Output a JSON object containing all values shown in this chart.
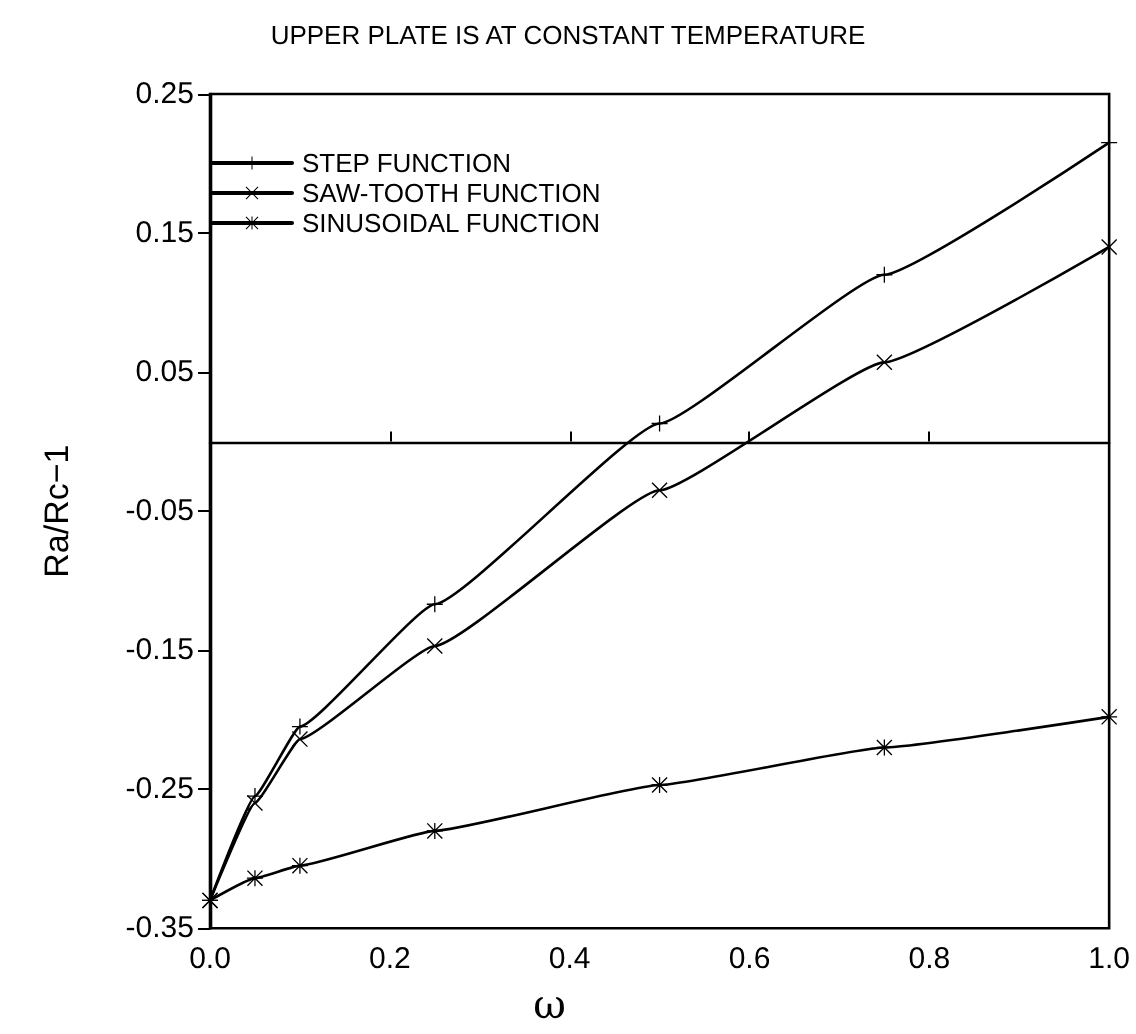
{
  "chart_data": {
    "type": "line",
    "title": "UPPER PLATE IS AT CONSTANT TEMPERATURE",
    "xlabel": "ω",
    "ylabel": "Ra/Rc−1",
    "x": [
      0,
      0.05,
      0.1,
      0.25,
      0.5,
      0.75,
      1.0
    ],
    "series": [
      {
        "name": "STEP FUNCTION",
        "color": "#000000",
        "marker": "cross",
        "values": [
          -0.33,
          -0.255,
          -0.205,
          -0.117,
          0.013,
          0.12,
          0.215
        ]
      },
      {
        "name": "SAW-TOOTH FUNCTION",
        "color": "#000000",
        "marker": "x",
        "values": [
          -0.33,
          -0.26,
          -0.214,
          -0.147,
          -0.035,
          0.057,
          0.14
        ]
      },
      {
        "name": "SINUSOIDAL FUNCTION",
        "color": "#000000",
        "marker": "star",
        "values": [
          -0.33,
          -0.314,
          -0.305,
          -0.28,
          -0.247,
          -0.22,
          -0.198
        ]
      }
    ],
    "xlim": [
      0,
      1.0
    ],
    "xticks": [
      {
        "value": 0,
        "label": "0.0"
      },
      0.2,
      0.4,
      0.6,
      0.8,
      {
        "value": 1.0,
        "label": "1.0"
      }
    ],
    "ylim": [
      -0.35,
      0.25
    ],
    "yticks": [
      -0.35,
      -0.25,
      -0.15,
      -0.05,
      0.05,
      0.15,
      0.25
    ],
    "legend": "top left",
    "grid": false,
    "line_style": "solid"
  }
}
